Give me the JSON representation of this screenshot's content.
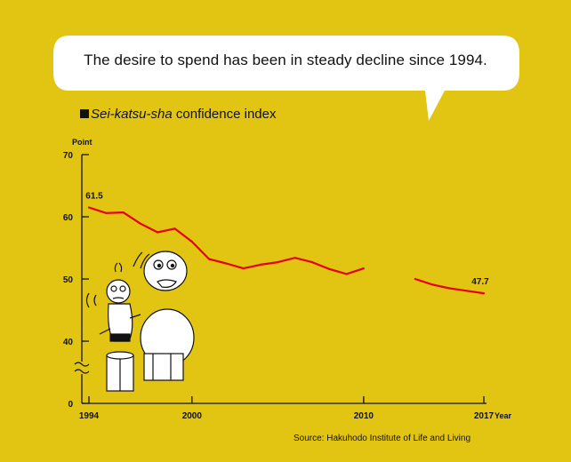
{
  "callout": {
    "text": "The desire to spend has been in steady decline since 1994."
  },
  "chart_title": {
    "marker": "■",
    "italic": "Sei-katsu-sha",
    "rest": " confidence index"
  },
  "source": "Source: Hakuhodo Institute of Life and Living",
  "colors": {
    "background": "#e1c512",
    "line": "#e60012",
    "axis": "#111111",
    "bubble": "#ffffff"
  },
  "chart_data": {
    "type": "line",
    "title": "Sei-katsu-sha confidence index",
    "ylabel": "Point",
    "xlabel": "Year",
    "ylim": [
      0,
      70
    ],
    "y_axis_break": true,
    "yticks": [
      0,
      40,
      50,
      60,
      70
    ],
    "xticks": [
      1994,
      2000,
      2010,
      2017
    ],
    "grid": false,
    "legend": "none",
    "series": [
      {
        "segments": [
          {
            "x": [
              1994,
              1995,
              1996,
              1997,
              1998,
              1999,
              2000,
              2001,
              2002,
              2003,
              2004,
              2005,
              2006,
              2007,
              2008,
              2009,
              2010
            ],
            "y": [
              61.5,
              60.6,
              60.7,
              58.9,
              57.5,
              58.1,
              56.0,
              53.2,
              52.5,
              51.7,
              52.3,
              52.7,
              53.4,
              52.7,
              51.6,
              50.8,
              51.7
            ]
          },
          {
            "x": [
              2013,
              2014,
              2015,
              2016,
              2017
            ],
            "y": [
              50.0,
              49.1,
              48.5,
              48.1,
              47.7
            ]
          }
        ]
      }
    ],
    "data_labels": [
      {
        "x": 1994,
        "y": 61.5,
        "text": "61.5"
      },
      {
        "x": 2017,
        "y": 47.7,
        "text": "47.7"
      }
    ]
  }
}
